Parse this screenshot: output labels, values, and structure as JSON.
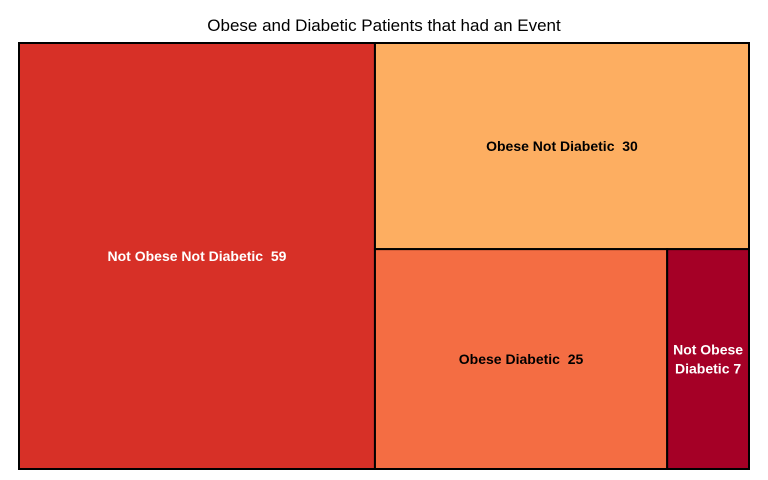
{
  "chart_data": {
    "type": "treemap",
    "title": "Obese and Diabetic Patients that had an Event",
    "items": [
      {
        "name": "Not Obese Not Diabetic",
        "value": 59,
        "color": "#d73027",
        "label_color": "#ffffff",
        "label_lines": [
          "Not Obese Not Diabetic  59"
        ]
      },
      {
        "name": "Obese Not Diabetic",
        "value": 30,
        "color": "#fdae61",
        "label_color": "#000000",
        "label_lines": [
          "Obese Not Diabetic  30"
        ]
      },
      {
        "name": "Obese Diabetic",
        "value": 25,
        "color": "#f46d43",
        "label_color": "#000000",
        "label_lines": [
          "Obese Diabetic  25"
        ]
      },
      {
        "name": "Not Obese Diabetic",
        "value": 7,
        "color": "#a50026",
        "label_color": "#ffffff",
        "label_lines": [
          "Not Obese",
          "Diabetic 7"
        ]
      }
    ],
    "border_color": "#000000"
  }
}
